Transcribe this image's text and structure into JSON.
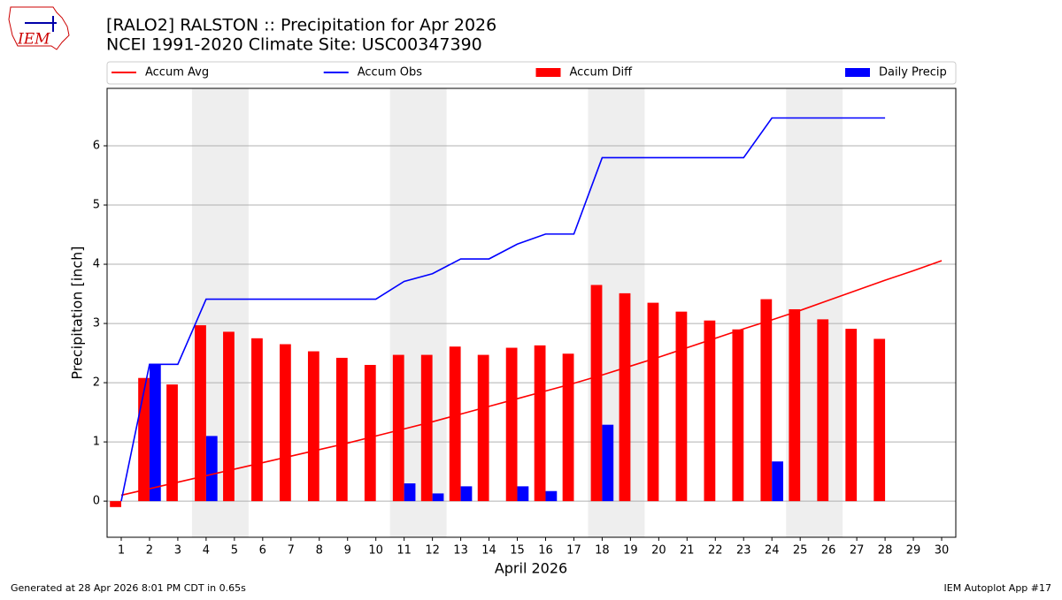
{
  "header": {
    "logo_text": "IEM"
  },
  "chart_data": {
    "type": "bar",
    "title": "[RALO2] RALSTON :: Precipitation for Apr 2026",
    "subtitle": "NCEI 1991-2020 Climate Site: USC00347390",
    "xlabel": "April 2026",
    "ylabel": "Precipitation [inch]",
    "x": [
      1,
      2,
      3,
      4,
      5,
      6,
      7,
      8,
      9,
      10,
      11,
      12,
      13,
      14,
      15,
      16,
      17,
      18,
      19,
      20,
      21,
      22,
      23,
      24,
      25,
      26,
      27,
      28,
      29,
      30
    ],
    "xlim": [
      0.5,
      30.5
    ],
    "xticks": [
      1,
      2,
      3,
      4,
      5,
      6,
      7,
      8,
      9,
      10,
      11,
      12,
      13,
      14,
      15,
      16,
      17,
      18,
      19,
      20,
      21,
      22,
      23,
      24,
      25,
      26,
      27,
      28,
      29,
      30
    ],
    "ylim": [
      -0.61,
      6.97
    ],
    "yticks": [
      0,
      1,
      2,
      3,
      4,
      5,
      6
    ],
    "grid": true,
    "shaded_spans": [
      [
        3.5,
        5.5
      ],
      [
        10.5,
        12.5
      ],
      [
        17.5,
        19.5
      ],
      [
        24.5,
        26.5
      ]
    ],
    "series": [
      {
        "name": "Accum Avg",
        "color": "#ff0000",
        "kind": "line",
        "values": [
          0.1,
          0.21,
          0.32,
          0.43,
          0.54,
          0.65,
          0.76,
          0.87,
          0.98,
          1.1,
          1.22,
          1.34,
          1.47,
          1.6,
          1.73,
          1.86,
          1.99,
          2.13,
          2.28,
          2.43,
          2.59,
          2.75,
          2.91,
          3.06,
          3.22,
          3.39,
          3.56,
          3.73,
          3.89,
          4.06
        ]
      },
      {
        "name": "Accum Obs",
        "color": "#0000ff",
        "kind": "line",
        "values": [
          0,
          2.31,
          2.31,
          3.41,
          3.41,
          3.41,
          3.41,
          3.41,
          3.41,
          3.41,
          3.71,
          3.84,
          4.09,
          4.09,
          4.34,
          4.51,
          4.51,
          5.8,
          5.8,
          5.8,
          5.8,
          5.8,
          5.8,
          6.47,
          6.47,
          6.47,
          6.47,
          6.47,
          null,
          null
        ]
      },
      {
        "name": "Accum Diff",
        "color": "#ff0000",
        "kind": "bar",
        "values": [
          -0.1,
          2.08,
          1.97,
          2.97,
          2.86,
          2.75,
          2.65,
          2.53,
          2.42,
          2.3,
          2.47,
          2.47,
          2.61,
          2.47,
          2.59,
          2.63,
          2.49,
          3.65,
          3.51,
          3.35,
          3.2,
          3.05,
          2.9,
          3.41,
          3.24,
          3.07,
          2.91,
          2.74,
          null,
          null
        ]
      },
      {
        "name": "Daily Precip",
        "color": "#0000ff",
        "kind": "bar",
        "values": [
          0,
          2.31,
          0,
          1.1,
          0,
          0,
          0,
          0,
          0,
          0,
          0.3,
          0.13,
          0.25,
          0,
          0.25,
          0.17,
          0,
          1.29,
          0,
          0,
          0,
          0,
          0,
          0.67,
          0,
          0,
          0,
          0,
          null,
          null
        ]
      }
    ],
    "footer_left": "Generated at 28 Apr 2026 8:01 PM CDT in 0.65s",
    "footer_right": "IEM Autoplot App #17"
  }
}
